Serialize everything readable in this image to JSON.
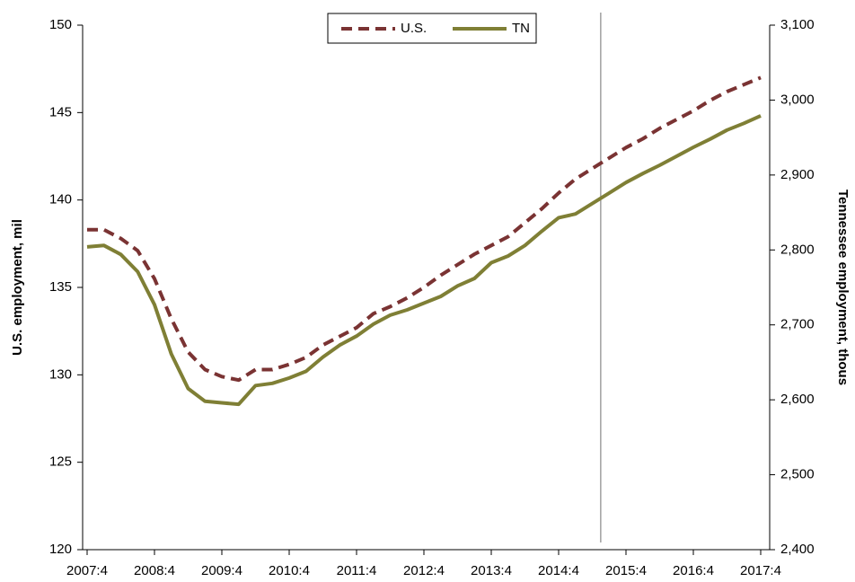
{
  "chart_data": {
    "type": "line",
    "ylabel": "U.S. employment, mil",
    "y2label": "Tennessee employment, thous",
    "categories": [
      "2007:4",
      null,
      null,
      null,
      "2008:4",
      null,
      null,
      null,
      "2009:4",
      null,
      null,
      null,
      "2010:4",
      null,
      null,
      null,
      "2011:4",
      null,
      null,
      null,
      "2012:4",
      null,
      null,
      null,
      "2013:4",
      null,
      null,
      null,
      "2014:4",
      null,
      null,
      null,
      "2015:4",
      null,
      null,
      null,
      "2016:4",
      null,
      null,
      null,
      "2017:4"
    ],
    "series": [
      {
        "name": "U.S.",
        "color": "#7a3333",
        "dash": true,
        "values": [
          138.3,
          138.3,
          137.8,
          137.1,
          135.5,
          133.2,
          131.3,
          130.3,
          129.9,
          129.7,
          130.3,
          130.3,
          130.6,
          131.0,
          131.7,
          132.2,
          132.7,
          133.5,
          133.9,
          134.4,
          135.0,
          135.7,
          136.3,
          136.9,
          137.4,
          137.9,
          138.7,
          139.5,
          140.4,
          141.2,
          141.8,
          142.4,
          143.0,
          143.5,
          144.1,
          144.6,
          145.1,
          145.7,
          146.2,
          146.6,
          147.0
        ]
      },
      {
        "name": "TN",
        "color": "#7f7f35",
        "axis": "y2",
        "values": [
          2804,
          2806,
          2794,
          2771,
          2727,
          2661,
          2615,
          2598,
          2596,
          2594,
          2619,
          2622,
          2629,
          2638,
          2657,
          2673,
          2685,
          2701,
          2713,
          2720,
          2729,
          2738,
          2752,
          2762,
          2783,
          2792,
          2806,
          2825,
          2843,
          2848,
          2862,
          2876,
          2890,
          2902,
          2913,
          2925,
          2937,
          2948,
          2960,
          2969,
          2979
        ]
      }
    ],
    "ylim": [
      120,
      150
    ],
    "yticks": [
      120,
      125,
      130,
      135,
      140,
      145,
      150
    ],
    "y2lim": [
      2400,
      3100
    ],
    "y2ticks": [
      {
        "value": 2400,
        "label": "2,400"
      },
      {
        "value": 2500,
        "label": "2,500"
      },
      {
        "value": 2600,
        "label": "2,600"
      },
      {
        "value": 2700,
        "label": "2,700"
      },
      {
        "value": 2800,
        "label": "2,800"
      },
      {
        "value": 2900,
        "label": "2,900"
      },
      {
        "value": 3000,
        "label": "3,000"
      },
      {
        "value": 3100,
        "label": "3,100"
      }
    ],
    "vline": 30.5,
    "legend": "top"
  }
}
